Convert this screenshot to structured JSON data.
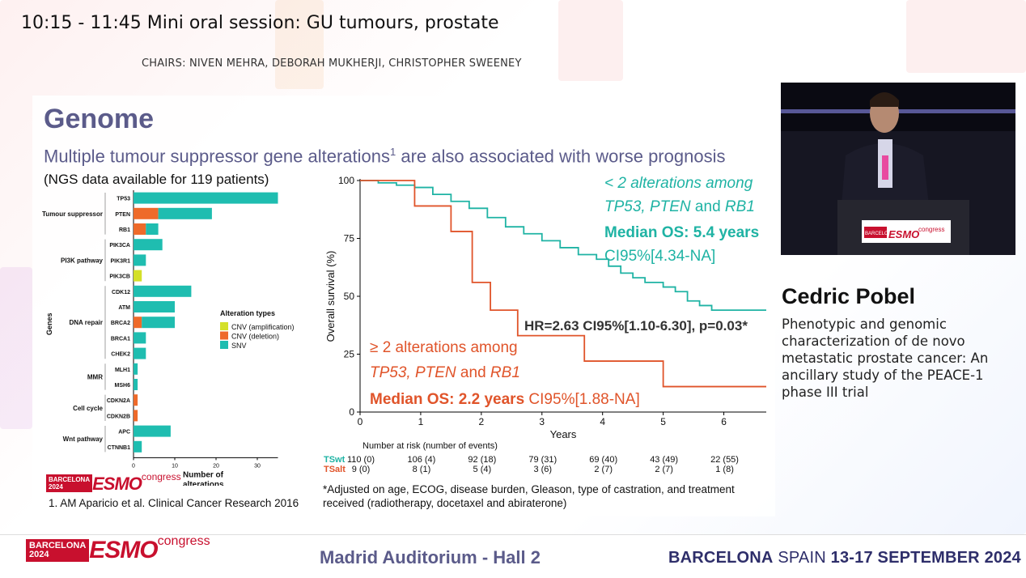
{
  "session": {
    "time_title": "10:15 - 11:45  Mini oral session: GU tumours, prostate",
    "chairs": "CHAIRS: NIVEN MEHRA, DEBORAH MUKHERJI, CHRISTOPHER SWEENEY"
  },
  "slide": {
    "title": "Genome",
    "subtitle": "Multiple tumour suppressor gene alterations",
    "subtitle_sup": "1",
    "subtitle_rest": " are also associated with worse prognosis",
    "ngs_note": "(NGS data available for 119 patients)",
    "citation": "1. AM Aparicio et al. Clinical Cancer Research 2016",
    "footnote": "*Adjusted on age, ECOG, disease burden, Gleason, type of castration, and treatment received (radiotherapy, docetaxel and abiraterone)"
  },
  "chart_data": [
    {
      "type": "bar",
      "stacked": true,
      "orientation": "horizontal",
      "ylabel": "Genes",
      "xlabel": "Number of alterations",
      "xlim": [
        0,
        35
      ],
      "xticks": [
        0,
        10,
        20,
        30
      ],
      "legend_title": "Alteration types",
      "groups": [
        {
          "name": "Tumour suppressor",
          "genes": [
            "TP53",
            "PTEN",
            "RB1"
          ]
        },
        {
          "name": "PI3K pathway",
          "genes": [
            "PIK3CA",
            "PIK3R1",
            "PIK3CB"
          ]
        },
        {
          "name": "DNA repair",
          "genes": [
            "CDK12",
            "ATM",
            "BRCA2",
            "BRCA1",
            "CHEK2"
          ]
        },
        {
          "name": "MMR",
          "genes": [
            "MLH1",
            "MSH6"
          ]
        },
        {
          "name": "Cell cycle",
          "genes": [
            "CDKN2A",
            "CDKN2B"
          ]
        },
        {
          "name": "Wnt pathway",
          "genes": [
            "APC",
            "CTNNB1"
          ]
        }
      ],
      "categories": [
        "TP53",
        "PTEN",
        "RB1",
        "PIK3CA",
        "PIK3R1",
        "PIK3CB",
        "CDK12",
        "ATM",
        "BRCA2",
        "BRCA1",
        "CHEK2",
        "MLH1",
        "MSH6",
        "CDKN2A",
        "CDKN2B",
        "APC",
        "CTNNB1"
      ],
      "series": [
        {
          "name": "CNV (amplification)",
          "color": "#d4e02a",
          "values": [
            0,
            0,
            0,
            0,
            0,
            2,
            0,
            0,
            0,
            0,
            0,
            0,
            0,
            0,
            0,
            0,
            0
          ]
        },
        {
          "name": "CNV (deletion)",
          "color": "#ee6a2a",
          "values": [
            0,
            6,
            3,
            0,
            0,
            0,
            0,
            0,
            2,
            0,
            0,
            0,
            0,
            1,
            1,
            0,
            0
          ]
        },
        {
          "name": "SNV",
          "color": "#1fbdb0",
          "values": [
            35,
            13,
            3,
            7,
            3,
            0,
            14,
            10,
            8,
            3,
            3,
            1,
            1,
            0,
            0,
            9,
            2
          ]
        }
      ]
    },
    {
      "type": "line",
      "subtype": "kaplan-meier",
      "xlabel": "Years",
      "ylabel": "Overall survival (%)",
      "xlim": [
        0,
        6.7
      ],
      "ylim": [
        0,
        100
      ],
      "xticks": [
        0,
        1,
        2,
        3,
        4,
        5,
        6
      ],
      "yticks": [
        0,
        25,
        50,
        75,
        100
      ],
      "series": [
        {
          "name": "TSwt",
          "color": "#1fb3a4",
          "points": [
            [
              0,
              100
            ],
            [
              0.3,
              99
            ],
            [
              0.6,
              98
            ],
            [
              0.9,
              97
            ],
            [
              1.2,
              94
            ],
            [
              1.5,
              91
            ],
            [
              1.8,
              88
            ],
            [
              2.1,
              84
            ],
            [
              2.4,
              80
            ],
            [
              2.7,
              77
            ],
            [
              3.0,
              74
            ],
            [
              3.3,
              71
            ],
            [
              3.6,
              68
            ],
            [
              3.9,
              66
            ],
            [
              4.1,
              63
            ],
            [
              4.3,
              60
            ],
            [
              4.5,
              58
            ],
            [
              4.7,
              56
            ],
            [
              5.0,
              54
            ],
            [
              5.2,
              52
            ],
            [
              5.4,
              48
            ],
            [
              5.6,
              46
            ],
            [
              5.8,
              44
            ],
            [
              6.0,
              44
            ],
            [
              6.7,
              44
            ]
          ]
        },
        {
          "name": "TSalt",
          "color": "#e0542a",
          "points": [
            [
              0,
              100
            ],
            [
              0.9,
              100
            ],
            [
              0.9,
              89
            ],
            [
              1.5,
              89
            ],
            [
              1.5,
              78
            ],
            [
              1.85,
              78
            ],
            [
              1.85,
              56
            ],
            [
              2.15,
              56
            ],
            [
              2.15,
              44
            ],
            [
              2.6,
              44
            ],
            [
              2.6,
              33
            ],
            [
              3.7,
              33
            ],
            [
              3.7,
              22
            ],
            [
              5.0,
              22
            ],
            [
              5.0,
              11
            ],
            [
              6.7,
              11
            ]
          ]
        }
      ],
      "annotations": {
        "wt_line1": "< 2 alterations among",
        "wt_line2_a": "TP53, PTEN",
        "wt_line2_b": " and ",
        "wt_line2_c": "RB1",
        "wt_median": "Median OS: 5.4 years",
        "wt_ci": "CI95%[4.34-NA]",
        "hr": "HR=2.63 CI95%[1.10-6.30], p=0.03*",
        "alt_line1": "≥ 2 alterations among",
        "alt_line2_a": "TP53, PTEN",
        "alt_line2_b": " and ",
        "alt_line2_c": " RB1",
        "alt_median": "Median OS: 2.2 years",
        "alt_ci": " CI95%[1.88-NA]"
      },
      "risk_table": {
        "title": "Number at risk (number of events)",
        "rows": [
          {
            "label": "TSwt",
            "color": "#1fb3a4",
            "values": [
              "110 (0)",
              "106 (4)",
              "92 (18)",
              "79 (31)",
              "69 (40)",
              "43 (49)",
              "22 (55)"
            ]
          },
          {
            "label": "TSalt",
            "color": "#e0542a",
            "values": [
              "9 (0)",
              "8 (1)",
              "5 (4)",
              "3 (6)",
              "2 (7)",
              "2 (7)",
              "1 (8)"
            ]
          }
        ]
      }
    }
  ],
  "speaker": {
    "name": "Cedric Pobel",
    "talk_title": "Phenotypic and genomic characterization of de novo metastatic prostate cancer: An ancillary study of the PEACE-1 phase III trial"
  },
  "video": {
    "podium_logo_box": "BARCELONA 2024",
    "podium_logo_word": "ESMO",
    "podium_logo_congress": "congress"
  },
  "footer": {
    "logo_box_line1": "BARCELONA",
    "logo_box_line2": "2024",
    "logo_word": "ESMO",
    "logo_congress": "congress",
    "room": "Madrid Auditorium - Hall 2",
    "venue_city": "BARCELONA",
    "venue_country": " SPAIN ",
    "venue_dates": "13-17 SEPTEMBER 2024"
  },
  "colors": {
    "title": "#5b5b8a",
    "snv": "#1fbdb0",
    "deletion": "#ee6a2a",
    "amplification": "#d4e02a",
    "esmo_red": "#c8102e"
  }
}
